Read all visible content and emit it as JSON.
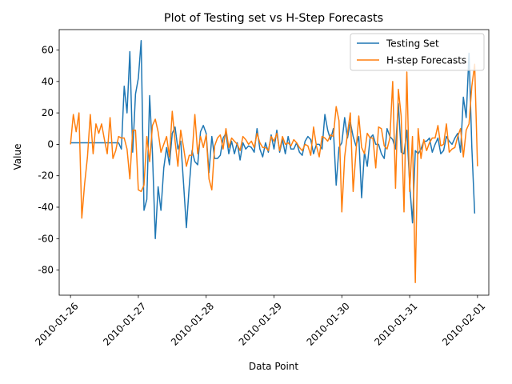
{
  "chart_data": {
    "type": "line",
    "title": "Plot of Testing set vs H-Step Forecasts",
    "xlabel": "Data Point",
    "ylabel": "Value",
    "x_axis": {
      "type": "date",
      "range": [
        "2010-01-25 20:00",
        "2010-02-01 04:00"
      ],
      "ticks": [
        "2010-01-26",
        "2010-01-27",
        "2010-01-28",
        "2010-01-29",
        "2010-01-30",
        "2010-01-31",
        "2010-02-01"
      ],
      "tick_rotation_deg": 45
    },
    "y_axis": {
      "range": [
        -96,
        73
      ],
      "ticks": [
        60,
        40,
        20,
        0,
        -20,
        -40,
        -60,
        -80
      ]
    },
    "grid": false,
    "legend": {
      "position": "top-right"
    },
    "x_start": "2010-01-26 00:00",
    "x_step": "1 hour",
    "series": [
      {
        "name": "Testing Set",
        "color": "#1f77b4",
        "values": [
          1,
          1,
          1,
          1,
          1,
          1,
          1,
          1,
          1,
          1,
          1,
          1,
          1,
          1,
          1,
          1,
          1,
          1,
          -3,
          37,
          20,
          59,
          -5,
          32,
          42,
          66,
          -42,
          -35,
          31,
          -6,
          -60,
          -27,
          -42,
          -15,
          -2,
          -13,
          7,
          11,
          -3,
          2,
          -25,
          -53,
          -27,
          -4,
          -11,
          -13,
          8,
          12,
          7,
          -18,
          5,
          -9,
          -9,
          -7,
          4,
          7,
          -6,
          2,
          -6,
          1,
          -10,
          1,
          -3,
          -1,
          -2,
          -5,
          10,
          -3,
          -8,
          1,
          -5,
          6,
          -3,
          9,
          -5,
          3,
          -6,
          5,
          -3,
          -3,
          1,
          -5,
          -7,
          2,
          5,
          3,
          -6,
          0,
          0,
          -3,
          19,
          9,
          3,
          10,
          -26,
          -2,
          1,
          17,
          4,
          14,
          5,
          -1,
          5,
          -34,
          -5,
          -14,
          4,
          6,
          0,
          0,
          -6,
          -9,
          10,
          5,
          3,
          -3,
          26,
          -5,
          -6,
          9,
          -25,
          -50,
          -4,
          -6,
          -3,
          2,
          2,
          4,
          -5,
          0,
          4,
          -6,
          -4,
          5,
          2,
          0,
          4,
          7,
          -5,
          30,
          17,
          58,
          -2,
          -44
        ]
      },
      {
        "name": "H-step Forecasts",
        "color": "#ff7f0e",
        "values": [
          0,
          19,
          8,
          20,
          -47,
          -25,
          -8,
          19,
          -6,
          13,
          7,
          13,
          3,
          -6,
          17,
          -9,
          -4,
          5,
          4,
          4,
          -3,
          -22,
          9,
          9,
          -29,
          -30,
          -26,
          5,
          -11,
          12,
          16,
          8,
          -5,
          0,
          5,
          -8,
          21,
          2,
          -14,
          9,
          -2,
          -14,
          -7,
          -7,
          19,
          -6,
          5,
          -2,
          6,
          -22,
          -29,
          -1,
          4,
          6,
          -3,
          10,
          -2,
          4,
          2,
          0,
          -4,
          5,
          3,
          0,
          2,
          -2,
          7,
          1,
          -2,
          -2,
          -4,
          5,
          2,
          7,
          -4,
          5,
          0,
          1,
          -1,
          3,
          1,
          -2,
          -4,
          0,
          -1,
          -7,
          11,
          -1,
          -8,
          5,
          4,
          2,
          6,
          5,
          24,
          15,
          -43,
          -8,
          7,
          20,
          -30,
          -5,
          18,
          -2,
          -6,
          7,
          4,
          4,
          -15,
          11,
          10,
          -1,
          -3,
          4,
          40,
          -28,
          35,
          18,
          -43,
          46,
          -30,
          5,
          -88,
          10,
          -9,
          3,
          -4,
          1,
          4,
          4,
          12,
          -1,
          0,
          13,
          -5,
          -3,
          -2,
          5,
          10,
          -8,
          9,
          13,
          37,
          51,
          -14
        ]
      }
    ]
  }
}
